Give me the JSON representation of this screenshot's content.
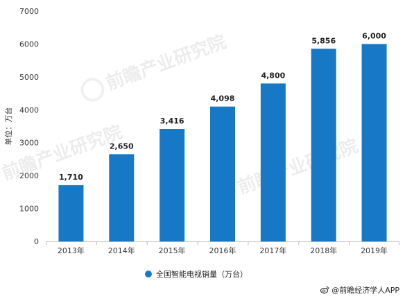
{
  "chart_data": {
    "type": "bar",
    "categories": [
      "2013年",
      "2014年",
      "2015年",
      "2016年",
      "2017年",
      "2018年",
      "2019年"
    ],
    "series": [
      {
        "name": "全国智能电视销量（万台）",
        "values": [
          1710,
          2650,
          3416,
          4098,
          4800,
          5856,
          6000
        ],
        "value_labels": [
          "1,710",
          "2,650",
          "3,416",
          "4,098",
          "4,800",
          "5,856",
          "6,000"
        ]
      }
    ],
    "ylabel": "单位：万台",
    "ylim": [
      0,
      7000
    ],
    "yticks": [
      0,
      1000,
      2000,
      3000,
      4000,
      5000,
      6000,
      7000
    ],
    "grid": false,
    "legend_position": "bottom-center",
    "bar_color": "#1779c5"
  },
  "watermark": {
    "text": "前瞻产业研究院"
  },
  "credit": {
    "icon": "weibo-icon",
    "text": "@前瞻经济学人APP"
  }
}
